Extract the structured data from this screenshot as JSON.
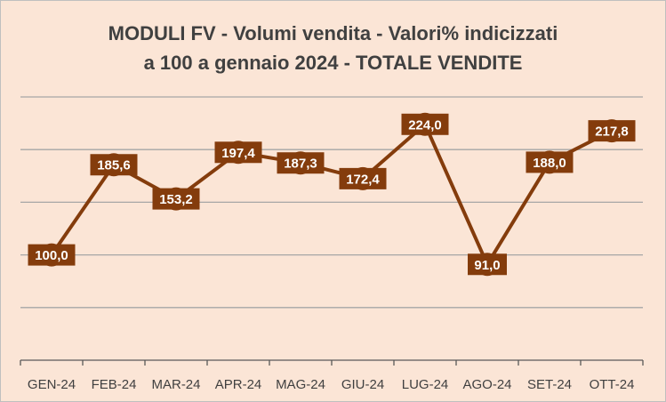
{
  "chart_data": {
    "type": "line",
    "title_lines": [
      "MODULI FV - Volumi vendita - Valori% indicizzati",
      "a 100 a gennaio 2024 - TOTALE VENDITE"
    ],
    "categories": [
      "GEN-24",
      "FEB-24",
      "MAR-24",
      "APR-24",
      "MAG-24",
      "GIU-24",
      "LUG-24",
      "AGO-24",
      "SET-24",
      "OTT-24"
    ],
    "values": [
      100.0,
      185.6,
      153.2,
      197.4,
      187.3,
      172.4,
      224.0,
      91.0,
      188.0,
      217.8
    ],
    "data_labels": [
      "100,0",
      "185,6",
      "153,2",
      "197,4",
      "187,3",
      "172,4",
      "224,0",
      "91,0",
      "188,0",
      "217,8"
    ],
    "xlabel": "",
    "ylabel": "",
    "ylim": [
      0,
      250
    ],
    "y_gridlines": [
      50,
      100,
      150,
      200,
      250
    ],
    "grid": true,
    "legend": "none",
    "colors": {
      "background": "#fbe5d6",
      "line": "#843c0c",
      "marker": "#843c0c",
      "label_box": "#843c0c",
      "label_text": "#ffffff",
      "gridline": "#a6a6a6",
      "axis": "#595959",
      "title": "#404040"
    }
  }
}
